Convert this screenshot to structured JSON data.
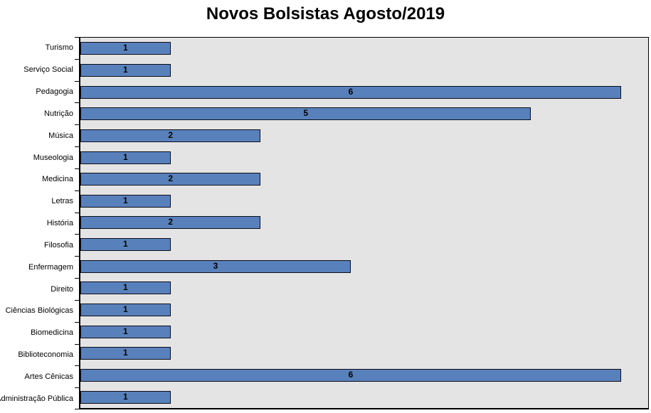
{
  "chart_data": {
    "type": "bar",
    "orientation": "horizontal",
    "title": "Novos Bolsistas Agosto/2019",
    "categories": [
      "Turismo",
      "Serviço Social",
      "Pedagogia",
      "Nutrição",
      "Música",
      "Museologia",
      "Medicina",
      "Letras",
      "História",
      "Filosofia",
      "Enfermagem",
      "Direito",
      "Ciências Biológicas",
      "Biomedicina",
      "Biblioteconomia",
      "Artes Cênicas",
      "Administração Pública"
    ],
    "values": [
      1,
      1,
      6,
      5,
      2,
      1,
      2,
      1,
      2,
      1,
      3,
      1,
      1,
      1,
      1,
      6,
      1
    ],
    "xlabel": "",
    "ylabel": "",
    "xlim": [
      0,
      6.3
    ],
    "grid": false,
    "legend": false,
    "data_labels": true,
    "colors": {
      "bar_fill": "#5881BC",
      "bar_border": "#0d0d18",
      "plot_bg": "#E4E4E4",
      "axis": "#000000",
      "text": "#000000",
      "page_bg": "#FFFFFF"
    }
  }
}
